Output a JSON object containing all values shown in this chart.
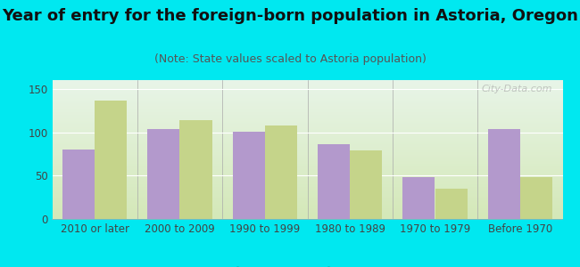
{
  "title": "Year of entry for the foreign-born population in Astoria, Oregon",
  "subtitle": "(Note: State values scaled to Astoria population)",
  "categories": [
    "2010 or later",
    "2000 to 2009",
    "1990 to 1999",
    "1980 to 1989",
    "1970 to 1979",
    "Before 1970"
  ],
  "astoria_values": [
    80,
    104,
    101,
    86,
    48,
    104
  ],
  "oregon_values": [
    136,
    114,
    108,
    79,
    35,
    48
  ],
  "astoria_color": "#b399cc",
  "oregon_color": "#c5d48a",
  "background_outer": "#00e8f0",
  "background_inner_bottom": "#d4e8b8",
  "background_inner_top": "#e8f5e8",
  "ylim": [
    0,
    160
  ],
  "yticks": [
    0,
    50,
    100,
    150
  ],
  "bar_width": 0.38,
  "title_fontsize": 13,
  "subtitle_fontsize": 9,
  "tick_fontsize": 8.5,
  "legend_fontsize": 10,
  "watermark": "City-Data.com"
}
